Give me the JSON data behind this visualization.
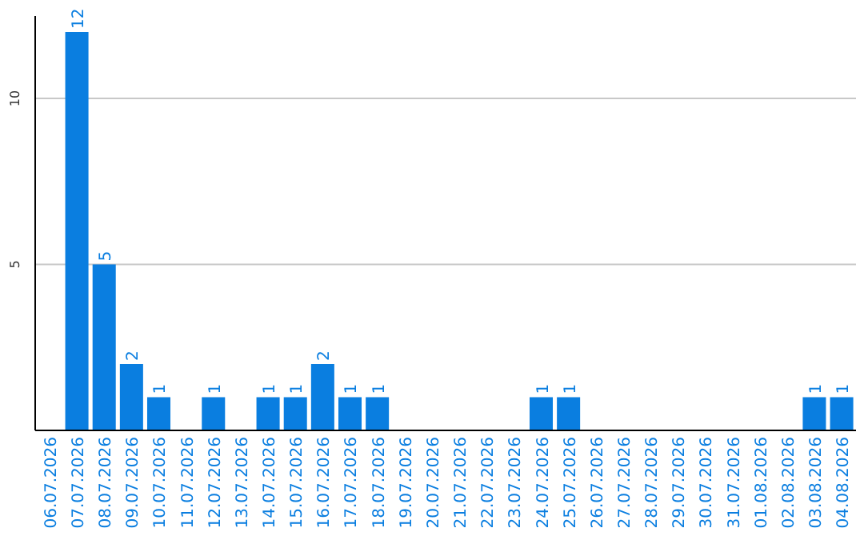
{
  "chart_data": {
    "type": "bar",
    "categories": [
      "06.07.2026",
      "07.07.2026",
      "08.07.2026",
      "09.07.2026",
      "10.07.2026",
      "11.07.2026",
      "12.07.2026",
      "13.07.2026",
      "14.07.2026",
      "15.07.2026",
      "16.07.2026",
      "17.07.2026",
      "18.07.2026",
      "19.07.2026",
      "20.07.2026",
      "21.07.2026",
      "22.07.2026",
      "23.07.2026",
      "24.07.2026",
      "25.07.2026",
      "26.07.2026",
      "27.07.2026",
      "28.07.2026",
      "29.07.2026",
      "30.07.2026",
      "31.07.2026",
      "01.08.2026",
      "02.08.2026",
      "03.08.2026",
      "04.08.2026"
    ],
    "values": [
      0,
      12,
      5,
      2,
      1,
      0,
      1,
      0,
      1,
      1,
      2,
      1,
      1,
      0,
      0,
      0,
      0,
      0,
      1,
      1,
      0,
      0,
      0,
      0,
      0,
      0,
      0,
      0,
      1,
      1
    ],
    "value_labels": [
      null,
      "12",
      "5",
      "2",
      "1",
      null,
      "1",
      null,
      "1",
      "1",
      "2",
      "1",
      "1",
      null,
      null,
      null,
      null,
      null,
      "1",
      "1",
      null,
      null,
      null,
      null,
      null,
      null,
      null,
      null,
      "1",
      "1"
    ],
    "color": "#0a7ee0",
    "ylim": [
      0,
      12
    ],
    "yticks": [
      5,
      10
    ],
    "grid": "y"
  }
}
